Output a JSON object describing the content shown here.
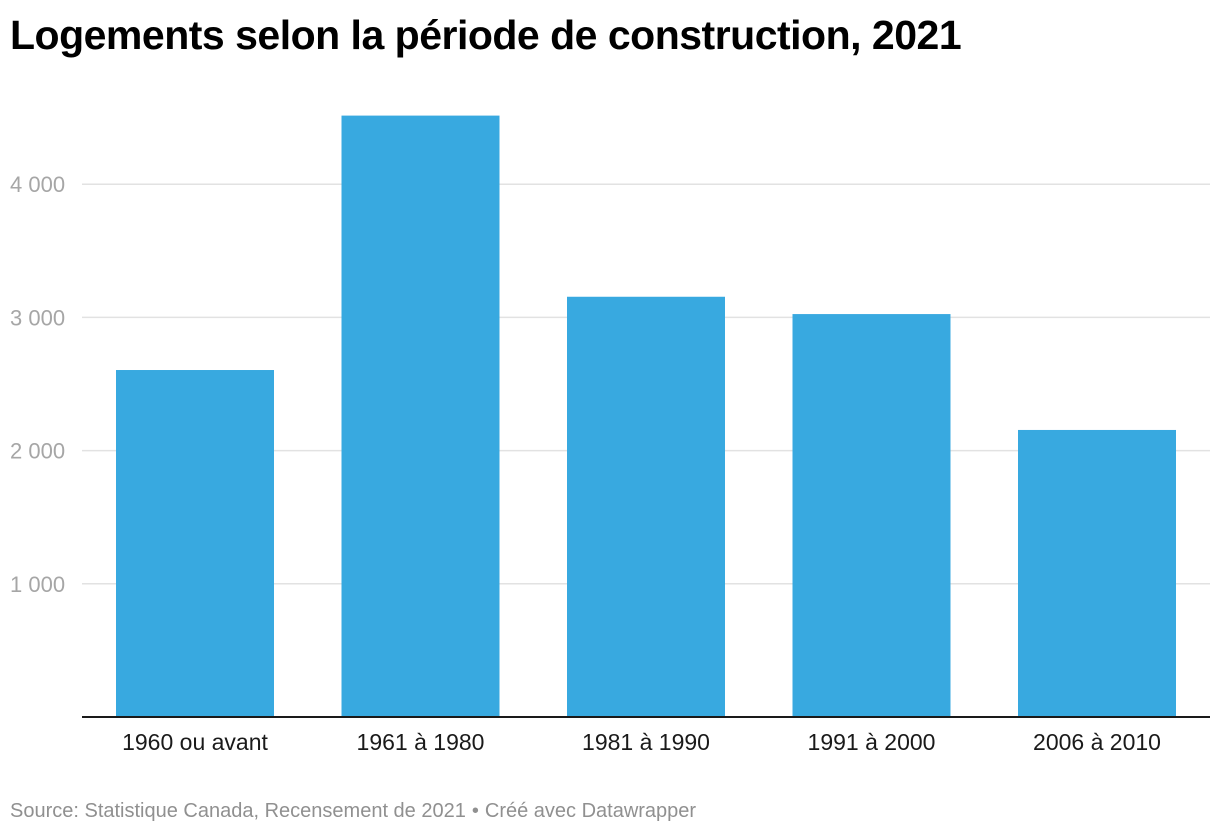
{
  "title": "Logements selon la période de construction, 2021",
  "footer": {
    "source": "Source: Statistique Canada, Recensement de 2021",
    "separator": "•",
    "credit": "Créé avec Datawrapper"
  },
  "colors": {
    "bar": "#38a9e0",
    "grid": "#e2e2e2",
    "baseline": "#1a1a1a"
  },
  "chart_data": {
    "type": "bar",
    "categories": [
      "1960 ou avant",
      "1961 à 1980",
      "1981 à 1990",
      "1991 à 2000",
      "2006 à 2010"
    ],
    "values": [
      2605,
      4515,
      3155,
      3025,
      2155
    ],
    "ylim": [
      0,
      4800
    ],
    "yticks": [
      1000,
      2000,
      3000,
      4000
    ],
    "ytick_labels": [
      "1 000",
      "2 000",
      "3 000",
      "4 000"
    ],
    "grid": true,
    "legend": "none",
    "title": "Logements selon la période de construction, 2021",
    "xlabel": "",
    "ylabel": ""
  }
}
